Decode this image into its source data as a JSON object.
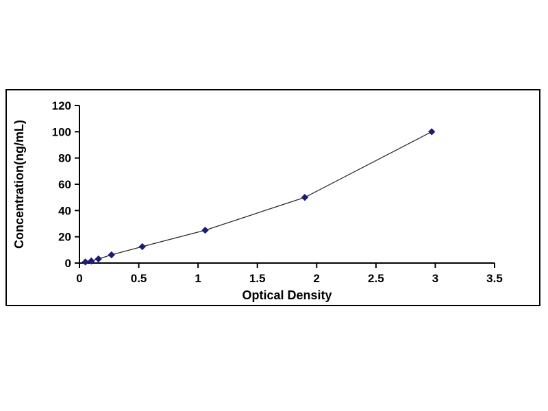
{
  "page": {
    "background_color": "#ffffff",
    "frame_border_color": "#000000"
  },
  "chart_data": {
    "type": "line",
    "title": "",
    "xlabel": "Optical Density",
    "ylabel": "Concentration(ng/mL)",
    "x": [
      0.05,
      0.1,
      0.16,
      0.27,
      0.53,
      1.06,
      1.9,
      2.97
    ],
    "y": [
      0.8,
      1.56,
      3.12,
      6.25,
      12.5,
      25,
      50,
      100
    ],
    "xlim": [
      0,
      3.5
    ],
    "ylim": [
      0,
      120
    ],
    "xticks": [
      0,
      0.5,
      1,
      1.5,
      2,
      2.5,
      3,
      3.5
    ],
    "yticks": [
      0,
      20,
      40,
      60,
      80,
      100,
      120
    ],
    "marker": "diamond",
    "marker_color": "#1c1c75",
    "line_color": "#2b2b2b",
    "axis_color": "#000000",
    "tick_label_color": "#000000",
    "grid": false,
    "legend": false
  }
}
